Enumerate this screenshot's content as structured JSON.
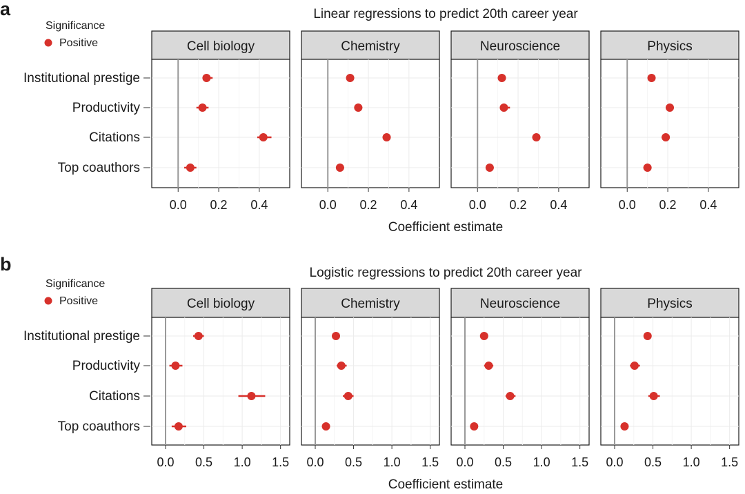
{
  "legend_title": "Significance",
  "legend_label": "Positive",
  "point_color": "#d7312b",
  "panels": [
    {
      "tag": "a",
      "title": "Linear regressions to predict 20th career year",
      "xlabel": "Coefficient estimate"
    },
    {
      "tag": "b",
      "title": "Logistic regressions to predict 20th career year",
      "xlabel": "Coefficient estimate"
    }
  ],
  "chart_data": [
    {
      "type": "scatter",
      "title": "Linear regressions to predict 20th career year",
      "xlabel": "Coefficient estimate",
      "xlim": [
        -0.13,
        0.55
      ],
      "xticks": [
        0.0,
        0.2,
        0.4
      ],
      "xtick_labels": [
        "0.0",
        "0.2",
        "0.4"
      ],
      "categories": [
        "Institutional prestige",
        "Productivity",
        "Citations",
        "Top coauthors"
      ],
      "facets": [
        {
          "name": "Cell biology",
          "estimates": [
            0.14,
            0.12,
            0.42,
            0.06
          ],
          "ci_low": [
            0.12,
            0.09,
            0.39,
            0.03
          ],
          "ci_high": [
            0.17,
            0.15,
            0.46,
            0.09
          ]
        },
        {
          "name": "Chemistry",
          "estimates": [
            0.11,
            0.15,
            0.29,
            0.06
          ],
          "ci_low": [
            0.1,
            0.13,
            0.27,
            0.05
          ],
          "ci_high": [
            0.13,
            0.17,
            0.31,
            0.08
          ]
        },
        {
          "name": "Neuroscience",
          "estimates": [
            0.12,
            0.13,
            0.29,
            0.06
          ],
          "ci_low": [
            0.1,
            0.11,
            0.27,
            0.04
          ],
          "ci_high": [
            0.14,
            0.16,
            0.31,
            0.08
          ]
        },
        {
          "name": "Physics",
          "estimates": [
            0.12,
            0.21,
            0.19,
            0.1
          ],
          "ci_low": [
            0.11,
            0.19,
            0.17,
            0.08
          ],
          "ci_high": [
            0.13,
            0.23,
            0.21,
            0.12
          ]
        }
      ],
      "legend": "Significance: Positive"
    },
    {
      "type": "scatter",
      "title": "Logistic regressions to predict 20th career year",
      "xlabel": "Coefficient estimate",
      "xlim": [
        -0.18,
        1.62
      ],
      "xticks": [
        0.0,
        0.5,
        1.0,
        1.5
      ],
      "xtick_labels": [
        "0.0",
        "0.5",
        "1.0",
        "1.5"
      ],
      "categories": [
        "Institutional prestige",
        "Productivity",
        "Citations",
        "Top coauthors"
      ],
      "facets": [
        {
          "name": "Cell biology",
          "estimates": [
            0.43,
            0.13,
            1.12,
            0.17
          ],
          "ci_low": [
            0.36,
            0.05,
            0.95,
            0.08
          ],
          "ci_high": [
            0.5,
            0.22,
            1.3,
            0.27
          ]
        },
        {
          "name": "Chemistry",
          "estimates": [
            0.27,
            0.34,
            0.43,
            0.14
          ],
          "ci_low": [
            0.22,
            0.28,
            0.36,
            0.1
          ],
          "ci_high": [
            0.32,
            0.41,
            0.5,
            0.19
          ]
        },
        {
          "name": "Neuroscience",
          "estimates": [
            0.25,
            0.31,
            0.59,
            0.12
          ],
          "ci_low": [
            0.2,
            0.25,
            0.53,
            0.08
          ],
          "ci_high": [
            0.3,
            0.37,
            0.66,
            0.16
          ]
        },
        {
          "name": "Physics",
          "estimates": [
            0.43,
            0.26,
            0.51,
            0.13
          ],
          "ci_low": [
            0.38,
            0.2,
            0.44,
            0.08
          ],
          "ci_high": [
            0.48,
            0.33,
            0.59,
            0.18
          ]
        }
      ],
      "legend": "Significance: Positive"
    }
  ]
}
